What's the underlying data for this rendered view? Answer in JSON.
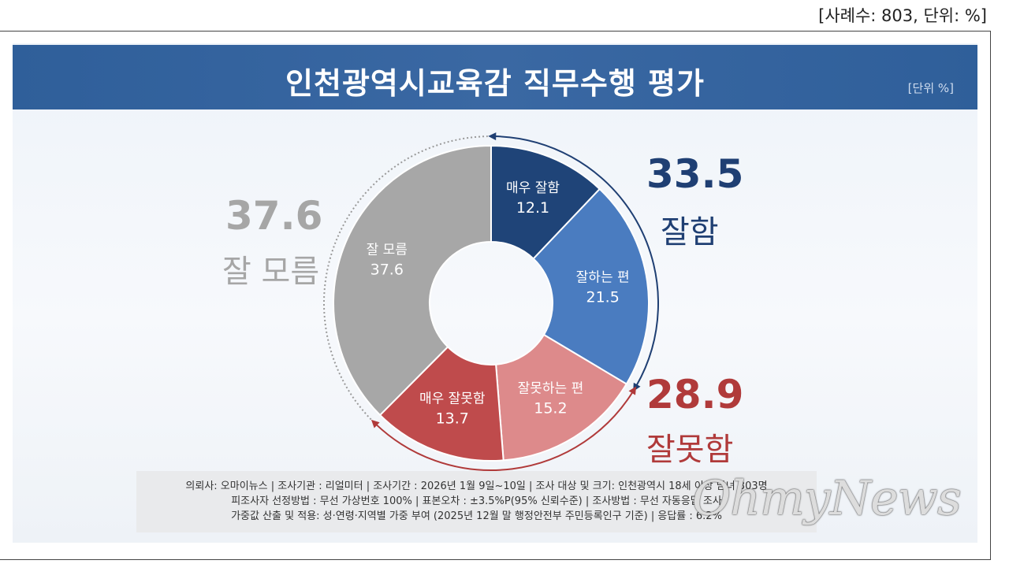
{
  "top_note": "[사례수: 803, 단위: %]",
  "title": "인천광역시교육감 직무수행 평가",
  "unit_label": "[단위 %]",
  "summary": {
    "good": {
      "value": "33.5",
      "label": "잘함",
      "color": "#1f3f73"
    },
    "bad": {
      "value": "28.9",
      "label": "잘못함",
      "color": "#b03a3a"
    },
    "unknown": {
      "value": "37.6",
      "label": "잘 모름",
      "color": "#a6a6a6"
    }
  },
  "chart_data": {
    "type": "pie",
    "title": "인천광역시교육감 직무수행 평가",
    "unit": "%",
    "slices": [
      {
        "label": "매우 잘함",
        "value": 12.1,
        "color": "#1f4478"
      },
      {
        "label": "잘하는 편",
        "value": 21.5,
        "color": "#4a7cc0"
      },
      {
        "label": "잘못하는 편",
        "value": 15.2,
        "color": "#dd8a8b"
      },
      {
        "label": "매우 잘못함",
        "value": 13.7,
        "color": "#bf4b4c"
      },
      {
        "label": "잘 모름",
        "value": 37.6,
        "color": "#a7a7a7"
      }
    ]
  },
  "footer": {
    "line1": "의뢰사: 오마이뉴스 | 조사기관 : 리얼미터 | 조사기간 : 2026년 1월 9일~10일 | 조사 대상 및 크기: 인천광역시 18세 이상 남녀 803명",
    "line2": "피조사자 선정방법 : 무선 가상번호 100% | 표본오차 : ±3.5%P(95% 신뢰수준) | 조사방법 : 무선 자동응답 조사",
    "line3": "가중값 산출 및 적용: 성·연령·지역별 가중 부여 (2025년 12월 말 행정안전부 주민등록인구 기준) | 응답률 : 6.2%"
  },
  "watermark": "OhmyNews"
}
